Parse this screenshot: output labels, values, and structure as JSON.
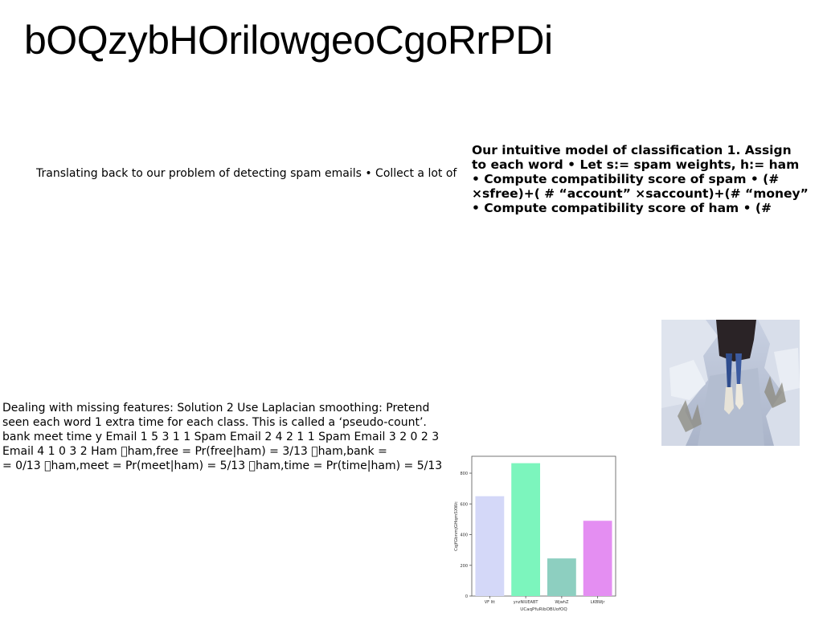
{
  "title": "bOQzybHOrilowgeoCgoRrPDi",
  "text_blocks": {
    "spam_intro": "Translating back to our problem of detecting spam emails • Collect a lot of",
    "intuitive_model": [
      "Our intuitive model of classification 1. Assign",
      "to each word • Let s:= spam weights, h:= ham",
      "• Compute compatibility score of spam • (#",
      "×sfree)+( # “account” ×saccount)+(# “money”",
      "• Compute compatibility score of ham • (#"
    ],
    "missing_features": [
      "Dealing with missing features: Solution 2 Use Laplacian smoothing: Pretend",
      "seen each word 1 extra time for each class. This is called a ‘pseudo-count’.",
      "bank meet time y Email 1 5 3 1 1 Spam Email 2 4 2 1 1 Spam Email 3 2 0 2 3",
      "Email 4 1 0 3 2 Ham \u0000ham,free = Pr(free|ham) = 3/13 \u0000ham,bank =",
      "= 0/13 \u0000ham,meet = Pr(meet|ham) = 5/13 \u0000ham,time = Pr(time|ham) = 5/13"
    ]
  },
  "photo": {
    "subject": "person-standing-on-snowy-rocky-path"
  },
  "chart_data": {
    "type": "bar",
    "categories": [
      "VF ltt",
      "ynzNIUEABT",
      "WjwhZ",
      "LKBWjr"
    ],
    "values": [
      650,
      865,
      245,
      490
    ],
    "colors": [
      "#d4d8f8",
      "#7cf5bd",
      "#8dcfc0",
      "#e48ef2"
    ],
    "xlabel": "UCaqPfuRibOBUofOQ",
    "ylabel": "CqjfGbnmjGHqmSXWc",
    "ylim": [
      0,
      910
    ],
    "yticks": [
      0,
      200,
      400,
      600,
      800
    ],
    "grid": false
  }
}
